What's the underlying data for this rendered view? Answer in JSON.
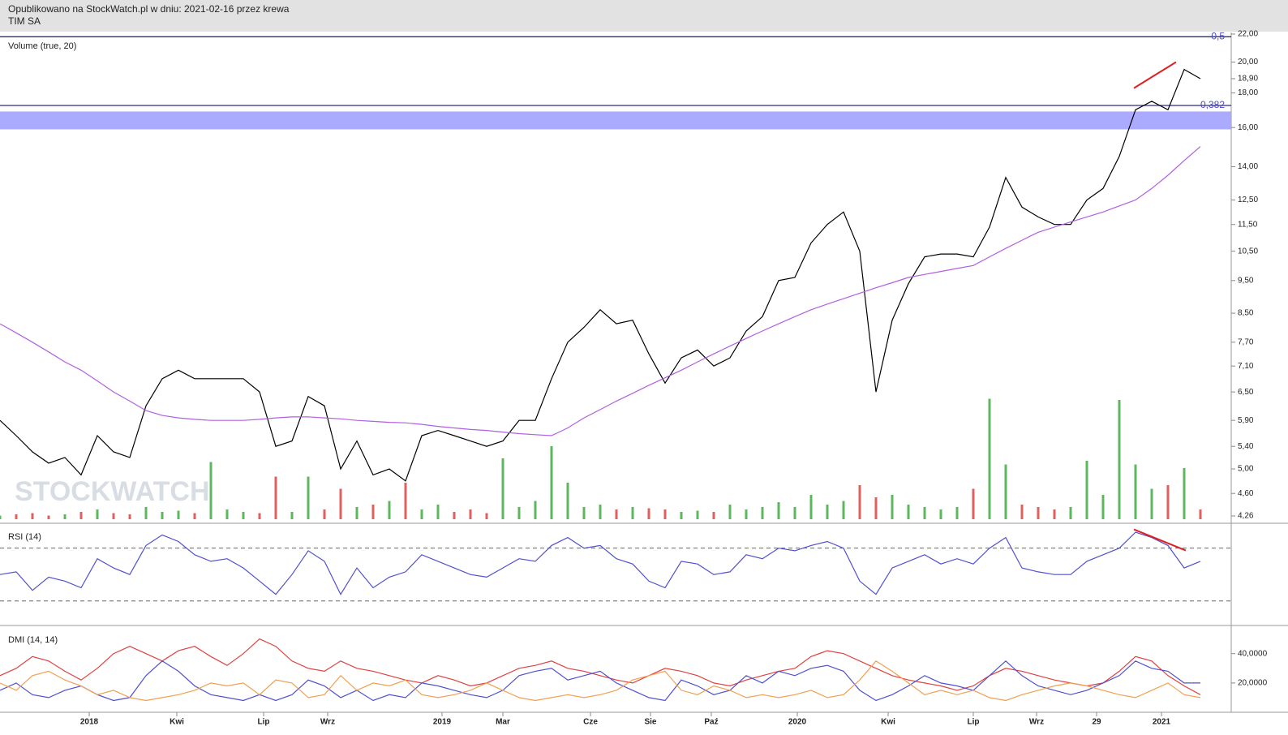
{
  "header": {
    "line1": "Opublikowano na StockWatch.pl w dniu: 2021-02-16 przez krewa",
    "line2": "TIM SA"
  },
  "watermark": "STOCKWATCH",
  "chart_data": [
    {
      "type": "line",
      "log_scale": true,
      "xlim": [
        0,
        74
      ],
      "ylim": [
        4.26,
        22
      ],
      "yticks": [
        {
          "value": 22,
          "label": "22,00"
        },
        {
          "value": 20,
          "label": "20,00"
        },
        {
          "value": 18.9,
          "label": "18,90"
        },
        {
          "value": 18,
          "label": "18,00"
        },
        {
          "value": 16,
          "label": "16,00"
        },
        {
          "value": 14,
          "label": "14,00"
        },
        {
          "value": 12.5,
          "label": "12,50"
        },
        {
          "value": 11.5,
          "label": "11,50"
        },
        {
          "value": 10.5,
          "label": "10,50"
        },
        {
          "value": 9.5,
          "label": "9,50"
        },
        {
          "value": 8.5,
          "label": "8,50"
        },
        {
          "value": 7.7,
          "label": "7,70"
        },
        {
          "value": 7.1,
          "label": "7,10"
        },
        {
          "value": 6.5,
          "label": "6,50"
        },
        {
          "value": 5.9,
          "label": "5,90"
        },
        {
          "value": 5.4,
          "label": "5,40"
        },
        {
          "value": 5,
          "label": "5,00"
        },
        {
          "value": 4.6,
          "label": "4,60"
        },
        {
          "value": 4.26,
          "label": "4,26"
        }
      ],
      "series": [
        {
          "color": "#000000",
          "values": [
            5.9,
            5.6,
            5.3,
            5.1,
            5.2,
            4.9,
            5.6,
            5.3,
            5.2,
            6.2,
            6.8,
            7.0,
            6.8,
            6.8,
            6.8,
            6.8,
            6.5,
            5.4,
            5.5,
            6.4,
            6.2,
            5.0,
            5.5,
            4.9,
            5.0,
            4.8,
            5.6,
            5.7,
            5.6,
            5.5,
            5.4,
            5.5,
            5.9,
            5.9,
            6.8,
            7.7,
            8.1,
            8.6,
            8.2,
            8.3,
            7.4,
            6.7,
            7.3,
            7.5,
            7.1,
            7.3,
            8.0,
            8.4,
            9.5,
            9.6,
            10.8,
            11.5,
            12.0,
            10.5,
            6.5,
            8.3,
            9.4,
            10.3,
            10.4,
            10.4,
            10.3,
            11.4,
            13.5,
            12.2,
            11.8,
            11.5,
            11.5,
            12.5,
            13.0,
            14.5,
            17.0,
            17.5,
            17.0,
            19.5,
            18.9
          ]
        },
        {
          "color": "#b060e0",
          "values": [
            8.2,
            7.95,
            7.7,
            7.45,
            7.2,
            7.0,
            6.75,
            6.5,
            6.3,
            6.1,
            6.0,
            5.95,
            5.92,
            5.9,
            5.9,
            5.9,
            5.92,
            5.95,
            5.97,
            5.97,
            5.95,
            5.93,
            5.9,
            5.88,
            5.86,
            5.85,
            5.82,
            5.78,
            5.75,
            5.72,
            5.7,
            5.67,
            5.64,
            5.62,
            5.6,
            5.75,
            5.95,
            6.12,
            6.3,
            6.47,
            6.65,
            6.82,
            7.0,
            7.2,
            7.4,
            7.6,
            7.8,
            8.0,
            8.2,
            8.4,
            8.6,
            8.77,
            8.93,
            9.1,
            9.27,
            9.43,
            9.6,
            9.7,
            9.8,
            9.9,
            10.0,
            10.3,
            10.6,
            10.9,
            11.2,
            11.4,
            11.6,
            11.8,
            12.0,
            12.25,
            12.5,
            13.0,
            13.6,
            14.3,
            15.0
          ]
        }
      ],
      "fib_levels": [
        {
          "value": 21.8,
          "label": "0,5",
          "color": "#2a2a8a"
        },
        {
          "value": 17.25,
          "label": "0,382",
          "color": "#2a2a8a"
        }
      ],
      "zones": [
        {
          "from": 15.9,
          "to": 16.9,
          "color": "#aaaaff"
        }
      ],
      "trendlines": [
        {
          "color": "#e02020",
          "points": [
            [
              69.9,
              18.3
            ],
            [
              72.5,
              20.0
            ]
          ]
        }
      ]
    },
    {
      "type": "bar",
      "title": "Volume (true, 20)",
      "ylim": [
        0,
        100
      ],
      "up_color": "#5cb85c",
      "down_color": "#e06060",
      "values": [
        3,
        4,
        5,
        3,
        4,
        6,
        8,
        5,
        4,
        10,
        6,
        7,
        5,
        47,
        8,
        6,
        5,
        35,
        6,
        35,
        8,
        25,
        10,
        12,
        15,
        30,
        8,
        12,
        6,
        8,
        5,
        50,
        10,
        15,
        60,
        30,
        10,
        12,
        8,
        10,
        9,
        8,
        6,
        7,
        6,
        12,
        8,
        10,
        14,
        10,
        20,
        12,
        15,
        28,
        18,
        20,
        12,
        10,
        8,
        10,
        25,
        99,
        45,
        12,
        10,
        8,
        10,
        48,
        20,
        98,
        45,
        25,
        28,
        42,
        8
      ]
    },
    {
      "type": "line",
      "title": "RSI (14)",
      "ylim": [
        12,
        87
      ],
      "levels": [
        30,
        70
      ],
      "series": [
        {
          "color": "#5050d0",
          "values": [
            50,
            52,
            38,
            48,
            45,
            40,
            62,
            55,
            50,
            72,
            80,
            75,
            65,
            60,
            62,
            55,
            45,
            35,
            50,
            68,
            60,
            35,
            55,
            40,
            48,
            52,
            65,
            60,
            55,
            50,
            48,
            55,
            62,
            60,
            72,
            78,
            70,
            72,
            62,
            58,
            45,
            40,
            60,
            58,
            50,
            52,
            65,
            62,
            70,
            68,
            72,
            75,
            70,
            45,
            35,
            55,
            60,
            65,
            58,
            62,
            58,
            70,
            78,
            55,
            52,
            50,
            50,
            60,
            65,
            70,
            82,
            78,
            72,
            55,
            60
          ]
        }
      ],
      "trendlines": [
        {
          "color": "#e02020",
          "points": [
            [
              69.9,
              84.2
            ],
            [
              73.1,
              68.2
            ]
          ]
        }
      ]
    },
    {
      "type": "line",
      "title": "DMI (14, 14)",
      "ylim": [
        0,
        57
      ],
      "yticks": [
        {
          "value": 40,
          "label": "40,0000"
        },
        {
          "value": 20,
          "label": "20,0000"
        }
      ],
      "xticks": [
        {
          "value": 5.5,
          "label": "2018"
        },
        {
          "value": 10.9,
          "label": "Kwi"
        },
        {
          "value": 16.25,
          "label": "Lip"
        },
        {
          "value": 20.2,
          "label": "Wrz"
        },
        {
          "value": 27.25,
          "label": "2019"
        },
        {
          "value": 31,
          "label": "Mar"
        },
        {
          "value": 36.4,
          "label": "Cze"
        },
        {
          "value": 40.1,
          "label": "Sie"
        },
        {
          "value": 43.85,
          "label": "Paź"
        },
        {
          "value": 49.15,
          "label": "2020"
        },
        {
          "value": 54.75,
          "label": "Kwi"
        },
        {
          "value": 60,
          "label": "Lip"
        },
        {
          "value": 63.9,
          "label": "Wrz"
        },
        {
          "value": 67.6,
          "label": "29"
        },
        {
          "value": 71.6,
          "label": "2021"
        }
      ],
      "series": [
        {
          "color": "#e04040",
          "values": [
            25,
            30,
            38,
            35,
            28,
            22,
            30,
            40,
            45,
            40,
            35,
            42,
            45,
            38,
            32,
            40,
            50,
            45,
            35,
            30,
            28,
            35,
            30,
            28,
            25,
            22,
            20,
            25,
            22,
            18,
            20,
            25,
            30,
            32,
            35,
            30,
            28,
            25,
            22,
            20,
            25,
            30,
            28,
            25,
            20,
            18,
            22,
            25,
            28,
            30,
            38,
            42,
            40,
            35,
            30,
            25,
            22,
            20,
            18,
            15,
            18,
            25,
            30,
            28,
            25,
            22,
            20,
            18,
            20,
            28,
            38,
            35,
            25,
            18,
            12
          ]
        },
        {
          "color": "#5050d0",
          "values": [
            15,
            20,
            12,
            10,
            15,
            18,
            12,
            8,
            10,
            25,
            35,
            28,
            18,
            12,
            10,
            8,
            12,
            8,
            12,
            22,
            18,
            10,
            15,
            8,
            12,
            10,
            20,
            18,
            15,
            12,
            10,
            15,
            25,
            28,
            30,
            22,
            25,
            28,
            20,
            15,
            10,
            8,
            22,
            18,
            12,
            15,
            25,
            20,
            28,
            25,
            30,
            32,
            28,
            15,
            8,
            12,
            18,
            25,
            20,
            18,
            15,
            25,
            35,
            25,
            18,
            15,
            12,
            15,
            20,
            25,
            35,
            30,
            28,
            20,
            20
          ]
        },
        {
          "color": "#f0a050",
          "values": [
            20,
            15,
            25,
            28,
            22,
            18,
            12,
            15,
            10,
            8,
            10,
            12,
            15,
            20,
            18,
            20,
            12,
            22,
            20,
            10,
            12,
            25,
            15,
            20,
            18,
            22,
            12,
            10,
            12,
            15,
            20,
            15,
            10,
            8,
            10,
            12,
            10,
            12,
            15,
            22,
            25,
            28,
            15,
            12,
            18,
            15,
            10,
            12,
            10,
            12,
            15,
            10,
            12,
            22,
            35,
            28,
            20,
            12,
            15,
            12,
            15,
            10,
            8,
            12,
            15,
            18,
            20,
            18,
            15,
            12,
            10,
            15,
            20,
            12,
            10
          ]
        }
      ]
    }
  ]
}
